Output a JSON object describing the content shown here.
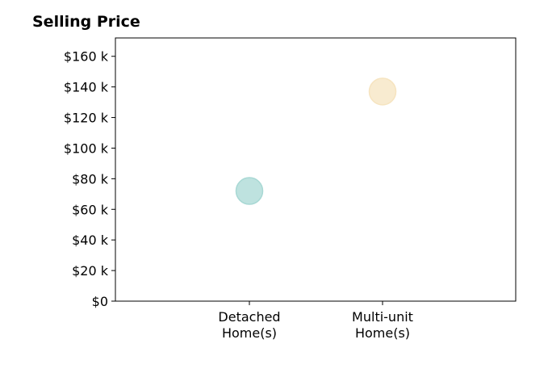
{
  "chart_data": {
    "type": "scatter",
    "title": "Selling Price",
    "xlabel": "",
    "ylabel": "",
    "categories": [
      "Detached\nHome(s)",
      "Multi-unit\nHome(s)"
    ],
    "yticks": [
      "$0",
      "$20 k",
      "$40 k",
      "$60 k",
      "$80 k",
      "$100 k",
      "$120 k",
      "$140 k",
      "$160 k"
    ],
    "ylim": [
      0,
      172000
    ],
    "series": [
      {
        "category": "Detached\nHome(s)",
        "value": 72000,
        "color": "#a8d8d4"
      },
      {
        "category": "Multi-unit\nHome(s)",
        "value": 137000,
        "color": "#f6e4c0"
      }
    ],
    "grid": false,
    "legend": "none"
  }
}
